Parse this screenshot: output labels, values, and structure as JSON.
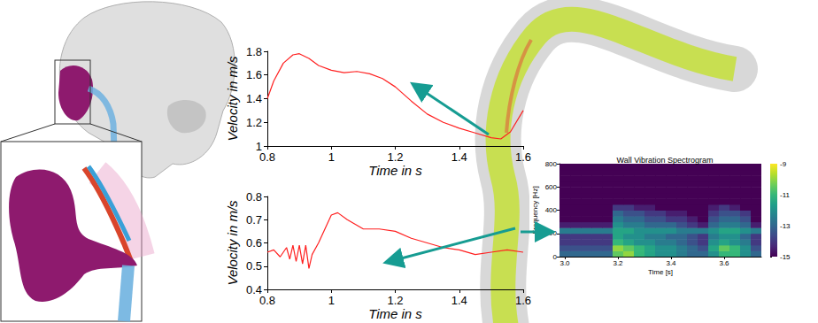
{
  "chart_data": [
    {
      "type": "line",
      "x": [
        0.8,
        0.82,
        0.85,
        0.88,
        0.9,
        0.93,
        0.96,
        1.0,
        1.04,
        1.08,
        1.12,
        1.16,
        1.2,
        1.25,
        1.3,
        1.35,
        1.4,
        1.45,
        1.5,
        1.53,
        1.56,
        1.6
      ],
      "values": [
        1.4,
        1.55,
        1.7,
        1.77,
        1.78,
        1.74,
        1.68,
        1.64,
        1.62,
        1.63,
        1.61,
        1.57,
        1.5,
        1.38,
        1.27,
        1.2,
        1.15,
        1.11,
        1.07,
        1.06,
        1.12,
        1.3
      ],
      "color": "#ff2020",
      "xlabel": "Time in s",
      "ylabel": "Velocity in m/s",
      "xlim": [
        0.8,
        1.6
      ],
      "xticks": [
        0.8,
        1,
        1.2,
        1.4,
        1.6
      ],
      "ylim": [
        1,
        1.8
      ],
      "yticks": [
        1,
        1.2,
        1.4,
        1.6,
        1.8
      ],
      "grid": false
    },
    {
      "type": "line",
      "x": [
        0.8,
        0.82,
        0.84,
        0.86,
        0.87,
        0.88,
        0.89,
        0.9,
        0.91,
        0.92,
        0.93,
        0.94,
        0.96,
        0.98,
        1.0,
        1.02,
        1.05,
        1.1,
        1.15,
        1.2,
        1.25,
        1.3,
        1.35,
        1.4,
        1.45,
        1.5,
        1.55,
        1.6
      ],
      "values": [
        0.56,
        0.57,
        0.54,
        0.58,
        0.53,
        0.59,
        0.52,
        0.59,
        0.51,
        0.59,
        0.49,
        0.55,
        0.6,
        0.66,
        0.72,
        0.73,
        0.7,
        0.66,
        0.66,
        0.65,
        0.62,
        0.6,
        0.58,
        0.57,
        0.55,
        0.56,
        0.57,
        0.56
      ],
      "color": "#ff2020",
      "xlabel": "Time in s",
      "ylabel": "Velocity in m/s",
      "xlim": [
        0.8,
        1.6
      ],
      "xticks": [
        0.8,
        1,
        1.2,
        1.4,
        1.6
      ],
      "ylim": [
        0.4,
        0.8
      ],
      "yticks": [
        0.4,
        0.5,
        0.6,
        0.7,
        0.8
      ],
      "grid": false
    },
    {
      "type": "heatmap",
      "title": "Wall Vibration Spectrogram",
      "xlabel": "Time [s]",
      "ylabel": "Frequency [Hz]",
      "time_bins": [
        2.98,
        3.02,
        3.06,
        3.1,
        3.14,
        3.18,
        3.22,
        3.26,
        3.3,
        3.34,
        3.38,
        3.42,
        3.46,
        3.5,
        3.54,
        3.58,
        3.62,
        3.66,
        3.7,
        3.74
      ],
      "frequency_bins": [
        0,
        50,
        100,
        150,
        200,
        250,
        300,
        350,
        400,
        450,
        500,
        550,
        600,
        650,
        700,
        750,
        800
      ],
      "cells": [
        [
          -13,
          -13,
          -13,
          -13,
          -13,
          -10.5,
          -10,
          -11,
          -11.5,
          -12,
          -12,
          -12.5,
          -13,
          -13,
          -12,
          -11,
          -11,
          -12,
          -13
        ],
        [
          -13.5,
          -13.5,
          -13.5,
          -13.5,
          -13.5,
          -10,
          -10.5,
          -11,
          -11.5,
          -12,
          -12,
          -12.5,
          -13,
          -13.5,
          -11.5,
          -10.5,
          -11,
          -12,
          -13.5
        ],
        [
          -14,
          -14,
          -14,
          -14,
          -14,
          -11,
          -11.5,
          -12,
          -12,
          -12.5,
          -12.5,
          -13,
          -13.5,
          -14,
          -12,
          -11.5,
          -12,
          -12.5,
          -14
        ],
        [
          -14,
          -14,
          -14,
          -14,
          -14,
          -11.5,
          -12,
          -12,
          -12.5,
          -12.5,
          -13,
          -13,
          -13.5,
          -14,
          -12.5,
          -12,
          -12,
          -13,
          -14
        ],
        [
          -12.5,
          -12.5,
          -12.5,
          -12.5,
          -12.5,
          -11.5,
          -11.5,
          -12,
          -12,
          -12,
          -12,
          -12.5,
          -12.5,
          -12.5,
          -12,
          -11.5,
          -11.5,
          -12,
          -12.5
        ],
        [
          -14.5,
          -14.5,
          -14.5,
          -14.5,
          -14.5,
          -12,
          -12.5,
          -12.5,
          -13,
          -13,
          -13,
          -13.5,
          -14,
          -14.5,
          -13,
          -12.5,
          -12.5,
          -13,
          -14.5
        ],
        [
          -15,
          -15,
          -15,
          -15,
          -15,
          -12.5,
          -13,
          -13,
          -13.5,
          -13.5,
          -14,
          -14,
          -14.5,
          -15,
          -13.5,
          -13,
          -13,
          -13.5,
          -15
        ],
        [
          -15,
          -15,
          -15,
          -15,
          -15,
          -13,
          -13.5,
          -13.5,
          -14,
          -14,
          -14.5,
          -14.5,
          -15,
          -15,
          -14,
          -13.5,
          -13.5,
          -14,
          -15
        ],
        [
          -15,
          -15,
          -15,
          -15,
          -15,
          -14,
          -14,
          -14.5,
          -14.5,
          -15,
          -15,
          -15,
          -15,
          -15,
          -14.5,
          -14,
          -14.5,
          -15,
          -15
        ],
        [
          -15,
          -15,
          -15,
          -15,
          -15,
          -15,
          -15,
          -15,
          -15,
          -15,
          -15,
          -15,
          -15,
          -15,
          -15,
          -15,
          -15,
          -15,
          -15
        ],
        [
          -15,
          -15,
          -15,
          -15,
          -15,
          -15,
          -15,
          -15,
          -15,
          -15,
          -15,
          -15,
          -15,
          -15,
          -15,
          -15,
          -15,
          -15,
          -15
        ],
        [
          -15,
          -15,
          -15,
          -15,
          -15,
          -15,
          -15,
          -15,
          -15,
          -15,
          -15,
          -15,
          -15,
          -15,
          -15,
          -15,
          -15,
          -15,
          -15
        ],
        [
          -15,
          -15,
          -15,
          -15,
          -15,
          -15,
          -15,
          -15,
          -15,
          -15,
          -15,
          -15,
          -15,
          -15,
          -15,
          -15,
          -15,
          -15,
          -15
        ],
        [
          -15,
          -15,
          -15,
          -15,
          -15,
          -15,
          -15,
          -15,
          -15,
          -15,
          -15,
          -15,
          -15,
          -15,
          -15,
          -15,
          -15,
          -15,
          -15
        ],
        [
          -15,
          -15,
          -15,
          -15,
          -15,
          -15,
          -15,
          -15,
          -15,
          -15,
          -15,
          -15,
          -15,
          -15,
          -15,
          -15,
          -15,
          -15,
          -15
        ],
        [
          -15,
          -15,
          -15,
          -15,
          -15,
          -15,
          -15,
          -15,
          -15,
          -15,
          -15,
          -15,
          -15,
          -15,
          -15,
          -15,
          -15,
          -15,
          -15
        ]
      ],
      "xlim": [
        2.98,
        3.74
      ],
      "xticks": [
        {
          "value": 3,
          "label": "3.0"
        },
        3.2,
        3.4,
        3.6
      ],
      "ylim": [
        0,
        800
      ],
      "yticks": [
        0,
        200,
        400,
        600,
        800
      ],
      "colorbar_lim": [
        -15,
        -9
      ],
      "colorbar_ticks": [
        -15,
        -13,
        -11,
        -9
      ]
    }
  ]
}
